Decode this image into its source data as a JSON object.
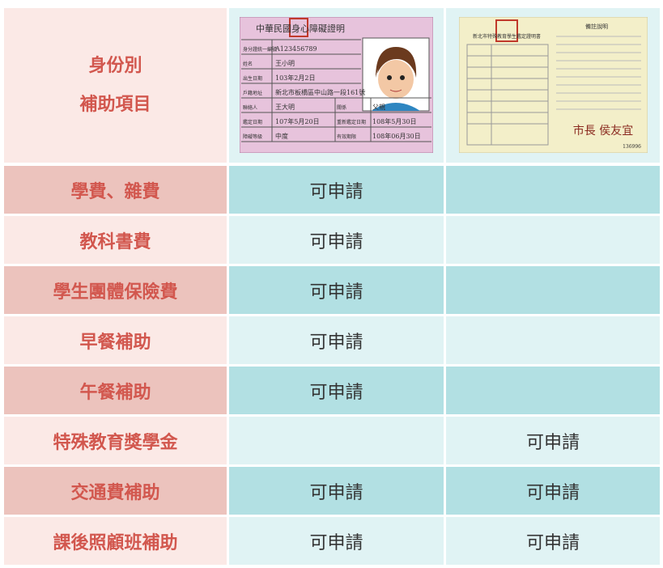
{
  "table": {
    "header": {
      "identity": "身份別",
      "item": "補助項目"
    },
    "cards": [
      {
        "title": "中華民國身心障礙證明",
        "fields": [
          {
            "label": "身分證統一編號",
            "value": "A123456789"
          },
          {
            "label": "姓名",
            "value": "王小明"
          },
          {
            "label": "出生日期",
            "value": "103年2月2日"
          },
          {
            "label": "戶籍地址",
            "value": "新北市板橋區中山路一段161號"
          },
          {
            "label": "聯絡人",
            "value": "王大明"
          },
          {
            "label": "關係",
            "value": "父親"
          },
          {
            "label": "鑑定日期",
            "value": "107年5月20日"
          },
          {
            "label": "重新鑑定日期",
            "value": "108年5月30日"
          },
          {
            "label": "障礙等級",
            "value": "中度"
          },
          {
            "label": "有效期限",
            "value": "108年06月30日"
          }
        ]
      },
      {
        "title": "新北市特殊教育學生鑑定證明書",
        "notes_title": "備註說明",
        "mayor": "市長 侯友宜",
        "serial": "136996"
      }
    ],
    "rows": [
      {
        "label": "學費、雜費",
        "cells": [
          "可申請",
          null
        ]
      },
      {
        "label": "教科書費",
        "cells": [
          "可申請",
          null
        ]
      },
      {
        "label": "學生團體保險費",
        "cells": [
          "可申請",
          null
        ]
      },
      {
        "label": "早餐補助",
        "cells": [
          "可申請",
          null
        ]
      },
      {
        "label": "午餐補助",
        "cells": [
          "可申請",
          null
        ]
      },
      {
        "label": "特殊教育獎學金",
        "cells": [
          null,
          "可申請"
        ]
      },
      {
        "label": "交通費補助",
        "cells": [
          "可申請",
          "可申請"
        ]
      },
      {
        "label": "課後照顧班補助",
        "cells": [
          "可申請",
          "可申請"
        ]
      }
    ]
  }
}
